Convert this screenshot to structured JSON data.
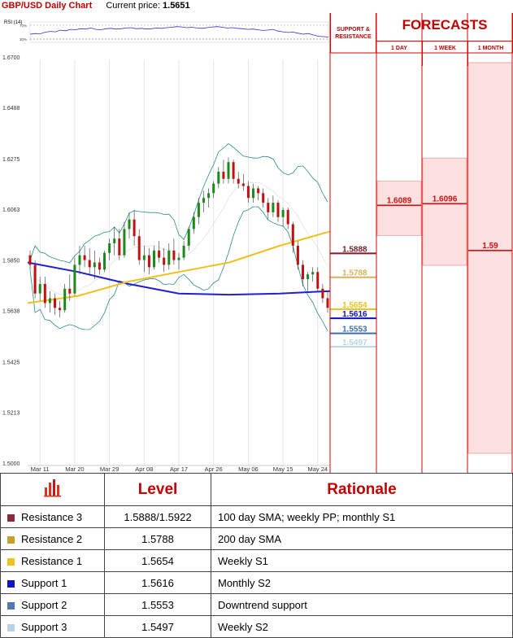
{
  "header": {
    "title": "GBP/USD Daily Chart",
    "price_label": "Current price:",
    "price_value": "1.5651"
  },
  "rsi": {
    "label": "RSI (14)",
    "levels": [
      "70%",
      "30%"
    ],
    "values": [
      44,
      46,
      45,
      50,
      52,
      51,
      56,
      54,
      58,
      57,
      60,
      59,
      62,
      58,
      57,
      60,
      61,
      59,
      60,
      62,
      63,
      60,
      61,
      59,
      60,
      62,
      61,
      63,
      64,
      66,
      65,
      63,
      64,
      62,
      61,
      63,
      65,
      66,
      64,
      62,
      63,
      61,
      60,
      58,
      59,
      57,
      55,
      56,
      58,
      53,
      51,
      49,
      50,
      47,
      44,
      46,
      42,
      38,
      37,
      36
    ]
  },
  "chart_data": {
    "type": "candlestick",
    "y_ticks": [
      "1.6700",
      "1.6488",
      "1.6275",
      "1.6063",
      "1.5850",
      "1.5638",
      "1.5425",
      "1.5213",
      "1.5000"
    ],
    "ylim": [
      1.5,
      1.67
    ],
    "x_ticks": [
      "Mar 11",
      "Mar 20",
      "Mar 29",
      "Apr 08",
      "Apr 17",
      "Apr 26",
      "May 06",
      "May 15",
      "May 24"
    ],
    "candles": [
      [
        1.588,
        1.59,
        1.582,
        1.584
      ],
      [
        1.584,
        1.586,
        1.57,
        1.572
      ],
      [
        1.572,
        1.579,
        1.569,
        1.576
      ],
      [
        1.576,
        1.579,
        1.566,
        1.568
      ],
      [
        1.568,
        1.573,
        1.564,
        1.57
      ],
      [
        1.57,
        1.572,
        1.563,
        1.566
      ],
      [
        1.566,
        1.569,
        1.562,
        1.565
      ],
      [
        1.565,
        1.576,
        1.564,
        1.574
      ],
      [
        1.574,
        1.58,
        1.569,
        1.572
      ],
      [
        1.572,
        1.587,
        1.571,
        1.584
      ],
      [
        1.584,
        1.592,
        1.58,
        1.588
      ],
      [
        1.588,
        1.592,
        1.583,
        1.586
      ],
      [
        1.586,
        1.591,
        1.58,
        1.583
      ],
      [
        1.583,
        1.59,
        1.578,
        1.585
      ],
      [
        1.585,
        1.587,
        1.58,
        1.582
      ],
      [
        1.582,
        1.59,
        1.581,
        1.589
      ],
      [
        1.589,
        1.595,
        1.586,
        1.593
      ],
      [
        1.593,
        1.6,
        1.588,
        1.595
      ],
      [
        1.595,
        1.599,
        1.586,
        1.588
      ],
      [
        1.588,
        1.602,
        1.587,
        1.599
      ],
      [
        1.599,
        1.606,
        1.595,
        1.603
      ],
      [
        1.603,
        1.607,
        1.592,
        1.596
      ],
      [
        1.596,
        1.599,
        1.584,
        1.586
      ],
      [
        1.586,
        1.592,
        1.581,
        1.588
      ],
      [
        1.588,
        1.591,
        1.58,
        1.583
      ],
      [
        1.583,
        1.592,
        1.582,
        1.59
      ],
      [
        1.59,
        1.594,
        1.585,
        1.587
      ],
      [
        1.587,
        1.591,
        1.581,
        1.584
      ],
      [
        1.584,
        1.593,
        1.582,
        1.59
      ],
      [
        1.59,
        1.595,
        1.584,
        1.586
      ],
      [
        1.586,
        1.589,
        1.582,
        1.587
      ],
      [
        1.587,
        1.594,
        1.586,
        1.592
      ],
      [
        1.592,
        1.6,
        1.59,
        1.599
      ],
      [
        1.599,
        1.606,
        1.597,
        1.604
      ],
      [
        1.604,
        1.612,
        1.601,
        1.61
      ],
      [
        1.61,
        1.615,
        1.606,
        1.612
      ],
      [
        1.612,
        1.616,
        1.608,
        1.614
      ],
      [
        1.614,
        1.619,
        1.612,
        1.618
      ],
      [
        1.618,
        1.625,
        1.616,
        1.623
      ],
      [
        1.623,
        1.628,
        1.618,
        1.62
      ],
      [
        1.62,
        1.629,
        1.618,
        1.627
      ],
      [
        1.627,
        1.628,
        1.618,
        1.62
      ],
      [
        1.62,
        1.623,
        1.616,
        1.618
      ],
      [
        1.618,
        1.622,
        1.615,
        1.617
      ],
      [
        1.617,
        1.619,
        1.61,
        1.612
      ],
      [
        1.612,
        1.618,
        1.61,
        1.616
      ],
      [
        1.616,
        1.617,
        1.611,
        1.614
      ],
      [
        1.614,
        1.616,
        1.608,
        1.61
      ],
      [
        1.61,
        1.612,
        1.603,
        1.606
      ],
      [
        1.606,
        1.613,
        1.604,
        1.61
      ],
      [
        1.61,
        1.611,
        1.602,
        1.604
      ],
      [
        1.604,
        1.608,
        1.6,
        1.607
      ],
      [
        1.607,
        1.608,
        1.599,
        1.601
      ],
      [
        1.601,
        1.602,
        1.589,
        1.592
      ],
      [
        1.592,
        1.594,
        1.582,
        1.584
      ],
      [
        1.584,
        1.586,
        1.575,
        1.578
      ],
      [
        1.578,
        1.581,
        1.573,
        1.58
      ],
      [
        1.58,
        1.583,
        1.577,
        1.581
      ],
      [
        1.581,
        1.583,
        1.573,
        1.574
      ],
      [
        1.574,
        1.576,
        1.568,
        1.57
      ],
      [
        1.57,
        1.573,
        1.564,
        1.566
      ]
    ],
    "lines": [
      {
        "name": "100 day SMA",
        "color": "#2020d0",
        "values": [
          1.585,
          1.581,
          1.576,
          1.572,
          1.5715,
          1.572,
          1.573
        ]
      },
      {
        "name": "200 day SMA",
        "color": "#f0c020",
        "values": [
          1.568,
          1.571,
          1.577,
          1.581,
          1.585,
          1.592,
          1.598
        ]
      }
    ],
    "levels": [
      {
        "label": "1.5888",
        "value": 1.5888,
        "color": "#7a1f2b"
      },
      {
        "label": "1.5788",
        "value": 1.5788,
        "color": "#d6b25a"
      },
      {
        "label": "1.5654",
        "value": 1.5654,
        "color": "#f2c21b"
      },
      {
        "label": "1.5616",
        "value": 1.5616,
        "color": "#1010c0"
      },
      {
        "label": "1.5553",
        "value": 1.5553,
        "color": "#3d6fa8"
      },
      {
        "label": "1.5497",
        "value": 1.5497,
        "color": "#b9d4e6"
      }
    ],
    "forecasts": {
      "title": "FORECASTS",
      "sr_title": "SUPPORT & RESISTANCE",
      "columns": [
        {
          "label": "1 DAY",
          "value": 1.6089,
          "label_value": "1.6089",
          "band": [
            1.5963,
            1.619
          ]
        },
        {
          "label": "1 WEEK",
          "value": 1.6096,
          "label_value": "1.6096",
          "band": [
            1.5838,
            1.6287
          ]
        },
        {
          "label": "1 MONTH",
          "value": 1.59,
          "label_value": "1.59",
          "band": [
            1.5,
            1.67
          ]
        }
      ]
    }
  },
  "table": {
    "headers": [
      "",
      "Level",
      "Rationale"
    ],
    "rows": [
      {
        "name": "Resistance 3",
        "color": "#8b2a36",
        "level": "1.5888/1.5922",
        "rationale": "100 day SMA; weekly PP; monthly S1"
      },
      {
        "name": "Resistance 2",
        "color": "#c8a02a",
        "level": "1.5788",
        "rationale": "200 day SMA"
      },
      {
        "name": "Resistance 1",
        "color": "#f2c21b",
        "level": "1.5654",
        "rationale": "Weekly S1"
      },
      {
        "name": "Support 1",
        "color": "#1010d0",
        "level": "1.5616",
        "rationale": "Monthly S2"
      },
      {
        "name": "Support 2",
        "color": "#4f79b0",
        "level": "1.5553",
        "rationale": "Downtrend support"
      },
      {
        "name": "Support 3",
        "color": "#b7d3e8",
        "level": "1.5497",
        "rationale": "Weekly S2"
      }
    ]
  }
}
